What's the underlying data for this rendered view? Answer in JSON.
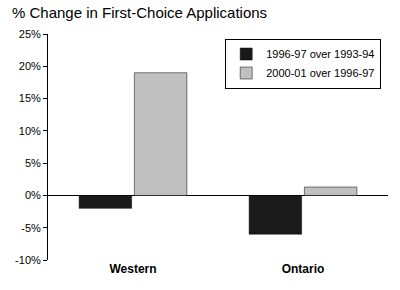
{
  "chart_data": {
    "type": "bar",
    "title": "% Change in First-Choice Applications",
    "categories": [
      "Western",
      "Ontario"
    ],
    "series": [
      {
        "name": "1996-97 over 1993-94",
        "color": "#1a1a1a",
        "values": [
          -2,
          -6
        ]
      },
      {
        "name": "2000-01 over 1996-97",
        "color": "#c0c0c0",
        "values": [
          19,
          1.3
        ]
      }
    ],
    "ylim": [
      -10,
      25
    ],
    "yticks": [
      {
        "value": -10,
        "label": "-10%"
      },
      {
        "value": -5,
        "label": "-5%"
      },
      {
        "value": 0,
        "label": "0%"
      },
      {
        "value": 5,
        "label": "5%"
      },
      {
        "value": 10,
        "label": "10%"
      },
      {
        "value": 15,
        "label": "15%"
      },
      {
        "value": 20,
        "label": "20%"
      },
      {
        "value": 25,
        "label": "25%"
      }
    ],
    "grid": false,
    "legend": "top right"
  }
}
